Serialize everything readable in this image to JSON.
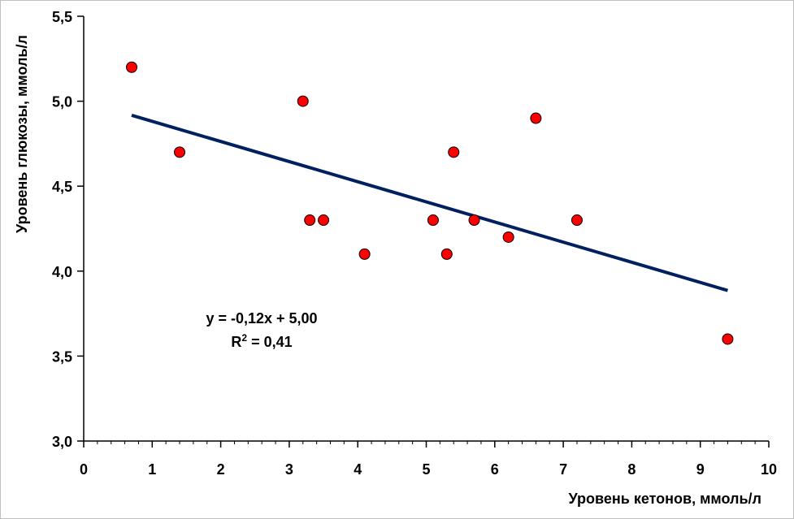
{
  "chart_data": {
    "type": "scatter",
    "title": "",
    "xlabel": "Уровень кетонов, ммоль/л",
    "ylabel": "Уровень глюкозы, ммоль/л",
    "xlim": [
      0,
      10
    ],
    "ylim": [
      3.0,
      5.5
    ],
    "x_ticks": [
      {
        "value": 0,
        "label": "0"
      },
      {
        "value": 1,
        "label": "1"
      },
      {
        "value": 2,
        "label": "2"
      },
      {
        "value": 3,
        "label": "3"
      },
      {
        "value": 4,
        "label": "4"
      },
      {
        "value": 5,
        "label": "5"
      },
      {
        "value": 6,
        "label": "6"
      },
      {
        "value": 7,
        "label": "7"
      },
      {
        "value": 8,
        "label": "8"
      },
      {
        "value": 9,
        "label": "9"
      },
      {
        "value": 10,
        "label": "10"
      }
    ],
    "y_ticks": [
      {
        "value": 3.0,
        "label": "3,0"
      },
      {
        "value": 3.5,
        "label": "3,5"
      },
      {
        "value": 4.0,
        "label": "4,0"
      },
      {
        "value": 4.5,
        "label": "4,5"
      },
      {
        "value": 5.0,
        "label": "5,0"
      },
      {
        "value": 5.5,
        "label": "5,5"
      }
    ],
    "grid": false,
    "series": [
      {
        "name": "data",
        "color": "#ff0000",
        "points": [
          {
            "x": 0.7,
            "y": 5.2
          },
          {
            "x": 1.4,
            "y": 4.7
          },
          {
            "x": 3.2,
            "y": 5.0
          },
          {
            "x": 3.3,
            "y": 4.3
          },
          {
            "x": 3.5,
            "y": 4.3
          },
          {
            "x": 4.1,
            "y": 4.1
          },
          {
            "x": 5.1,
            "y": 4.3
          },
          {
            "x": 5.3,
            "y": 4.1
          },
          {
            "x": 5.4,
            "y": 4.7
          },
          {
            "x": 5.7,
            "y": 4.3
          },
          {
            "x": 6.2,
            "y": 4.2
          },
          {
            "x": 6.6,
            "y": 4.9
          },
          {
            "x": 7.2,
            "y": 4.3
          },
          {
            "x": 9.4,
            "y": 3.6
          }
        ]
      }
    ],
    "trendline": {
      "type": "linear",
      "color": "#002060",
      "x_range": [
        0.7,
        9.4
      ],
      "slope": -0.1185,
      "intercept": 5.0
    },
    "annotations": {
      "equation": "y = -0,12x + 5,00",
      "r2_prefix": "R",
      "r2_sup": "2",
      "r2_value": " = 0,41"
    }
  }
}
